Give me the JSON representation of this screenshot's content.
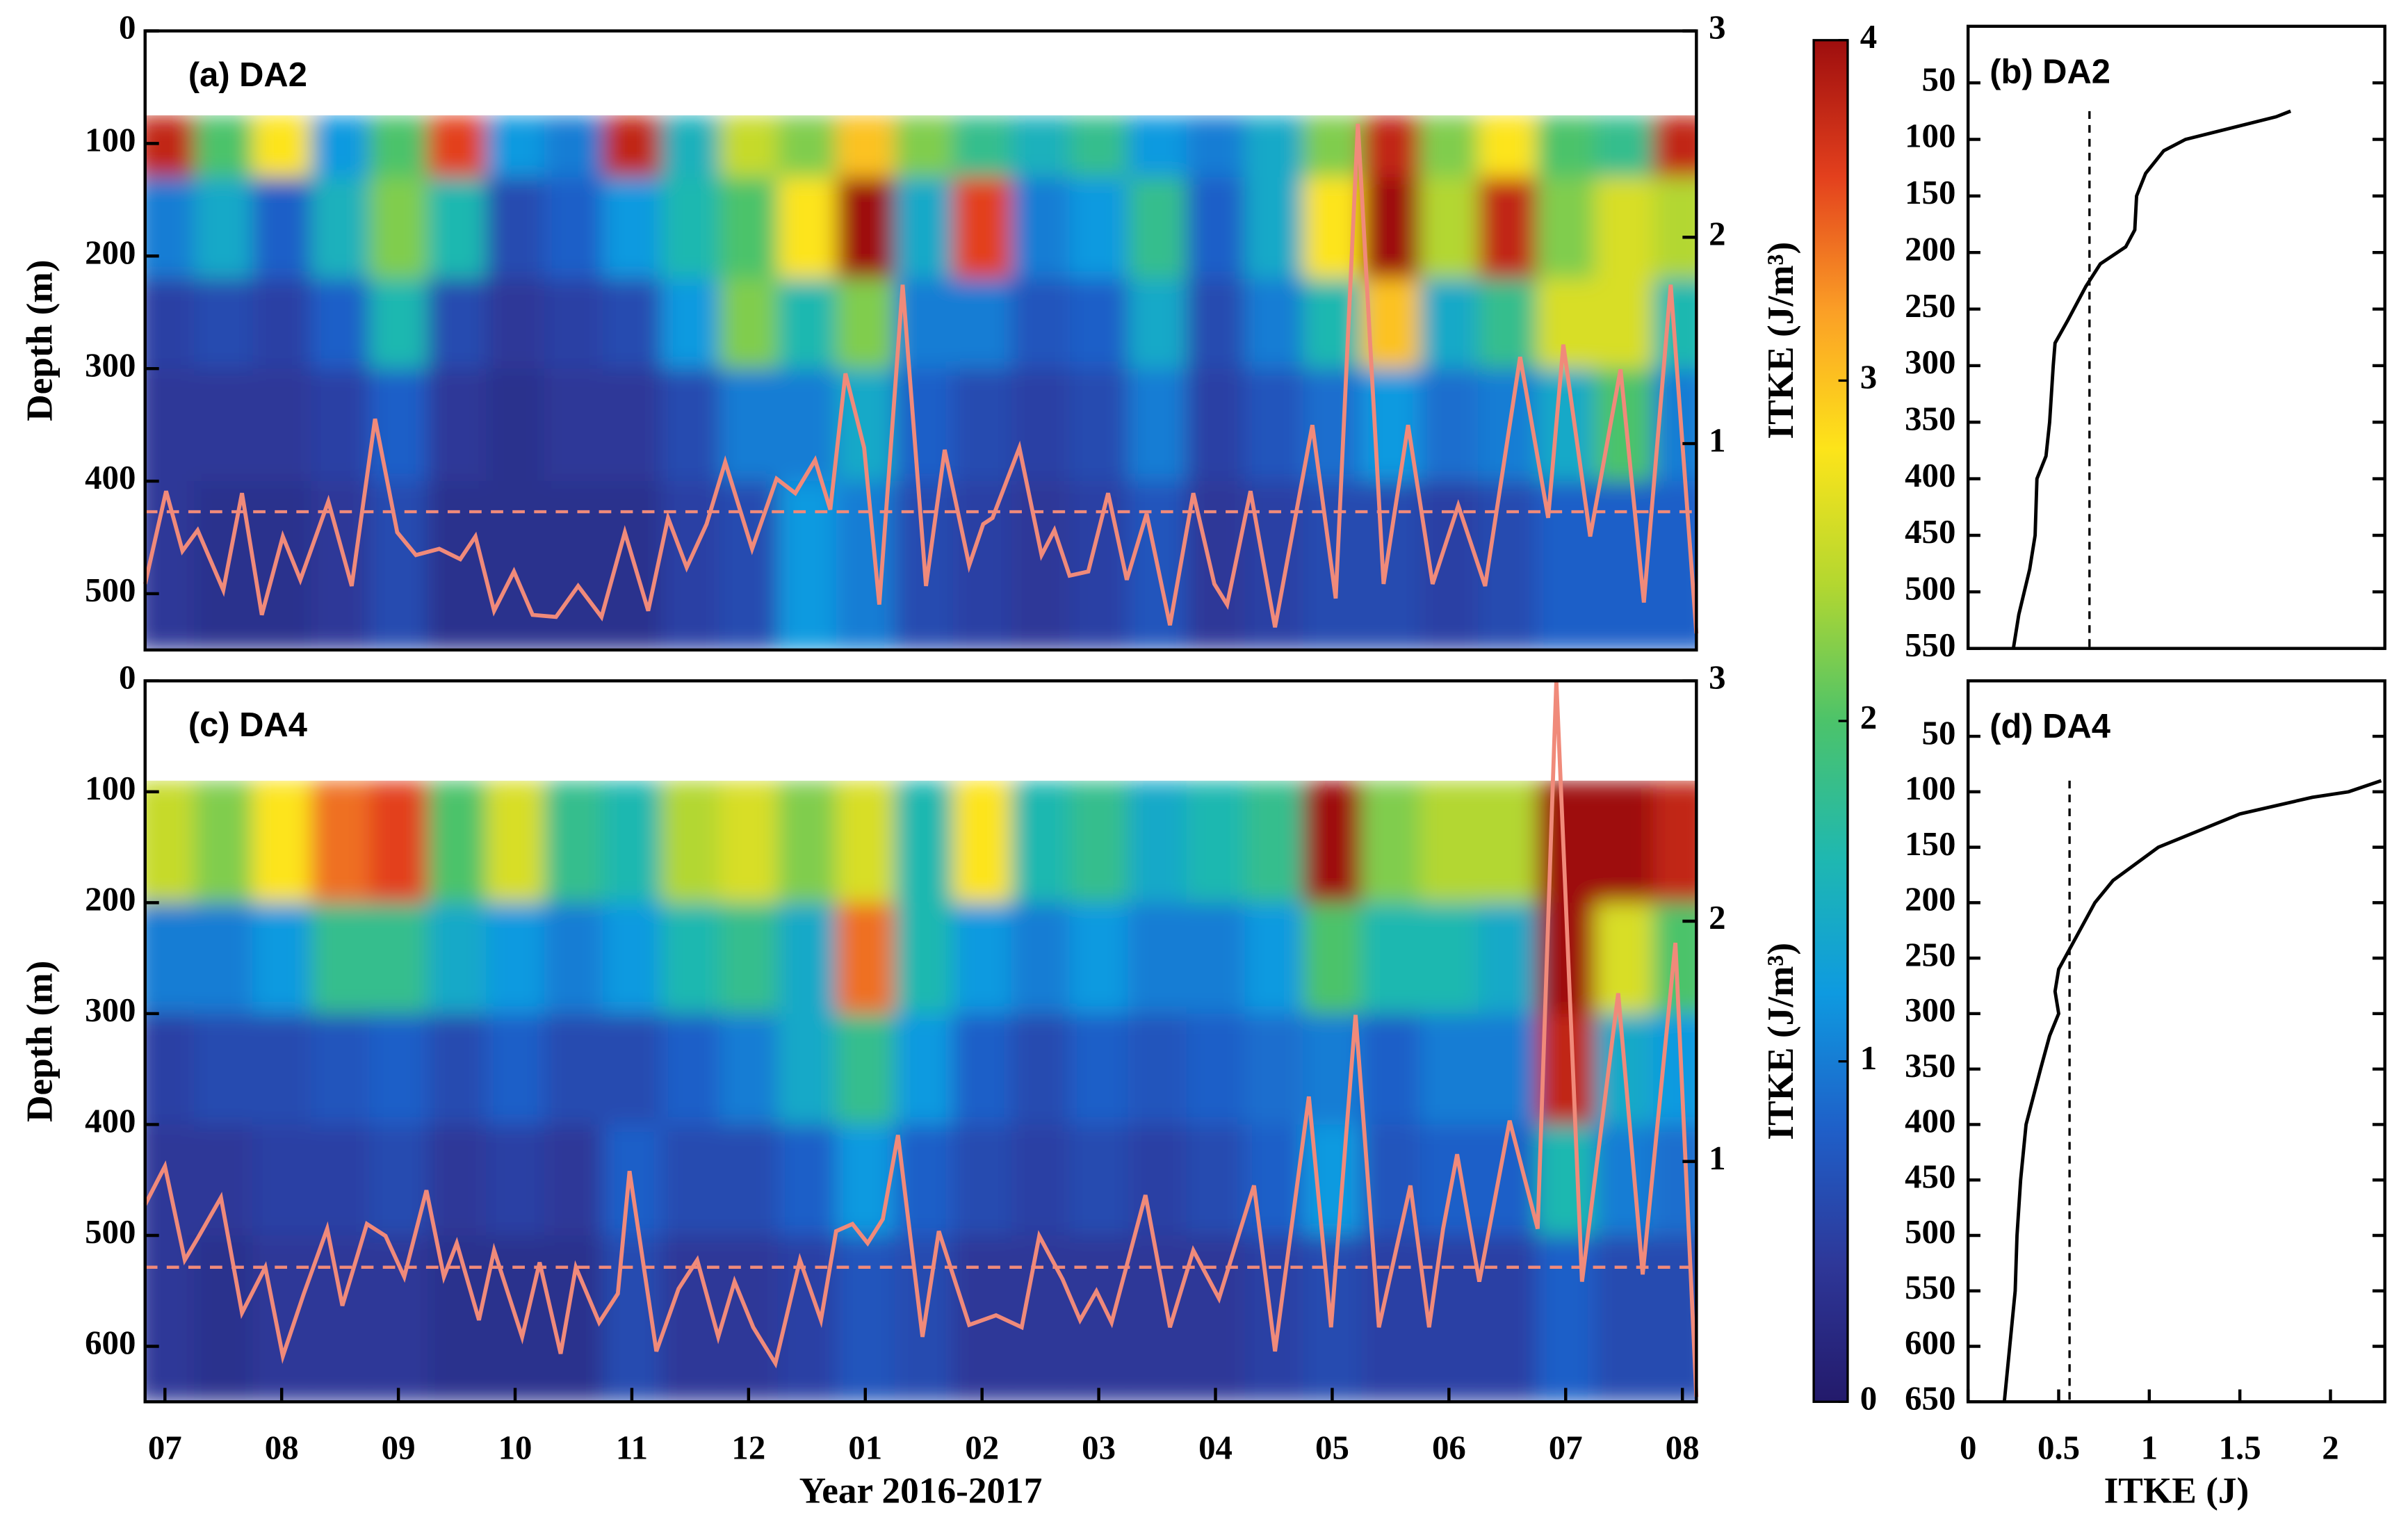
{
  "chart_data": [
    {
      "type": "heatmap",
      "title": "(a) DA2",
      "ylabel": "Depth (m)",
      "y2label": "ITKE (J/m³)",
      "xlim": [
        -0.17,
        13.12
      ],
      "ylim": [
        0,
        550
      ],
      "yticks": [
        0,
        100,
        200,
        300,
        400,
        500
      ],
      "y2lim": [
        0,
        3
      ],
      "y2ticks": [
        1,
        2,
        3
      ],
      "x_edges": [
        -0.25,
        0.25,
        0.75,
        1.25,
        1.75,
        2.25,
        2.75,
        3.25,
        3.75,
        4.25,
        4.75,
        5.25,
        5.75,
        6.25,
        6.75,
        7.25,
        7.75,
        8.25,
        8.75,
        9.25,
        9.75,
        10.25,
        10.75,
        11.25,
        11.75,
        12.25,
        12.75,
        13.25
      ],
      "depth_edges": [
        75,
        130,
        220,
        300,
        400,
        550
      ],
      "values": [
        [
          3.8,
          2.0,
          2.8,
          1.2,
          2.0,
          3.6,
          1.2,
          1.0,
          3.8,
          1.5,
          2.5,
          2.2,
          3.0,
          2.2,
          1.8,
          1.5,
          1.8,
          1.2,
          1.0,
          1.4,
          2.2,
          3.8,
          2.2,
          2.8,
          2.0,
          1.8,
          3.8
        ],
        [
          1.0,
          1.4,
          0.8,
          1.5,
          2.2,
          1.6,
          0.6,
          0.8,
          1.2,
          1.6,
          2.0,
          2.8,
          4.0,
          1.4,
          3.6,
          1.0,
          1.2,
          1.8,
          0.8,
          1.4,
          2.8,
          4.0,
          2.4,
          3.8,
          2.2,
          2.6,
          2.4
        ],
        [
          0.5,
          0.6,
          0.5,
          0.8,
          1.6,
          0.6,
          0.4,
          0.5,
          0.6,
          1.2,
          2.2,
          1.6,
          2.2,
          1.0,
          1.0,
          0.7,
          0.8,
          1.4,
          0.6,
          1.0,
          1.6,
          3.0,
          1.4,
          1.8,
          2.6,
          2.6,
          1.6
        ],
        [
          0.4,
          0.4,
          0.4,
          0.5,
          0.8,
          0.4,
          0.3,
          0.4,
          0.4,
          0.6,
          1.0,
          1.0,
          1.4,
          0.8,
          0.6,
          0.5,
          0.6,
          1.0,
          0.5,
          0.7,
          0.9,
          1.2,
          0.9,
          1.0,
          1.4,
          2.0,
          1.0
        ],
        [
          0.4,
          0.3,
          0.3,
          0.4,
          0.6,
          0.3,
          0.3,
          0.3,
          0.3,
          0.5,
          0.6,
          1.2,
          1.0,
          0.6,
          0.5,
          0.4,
          0.5,
          0.7,
          0.4,
          0.5,
          0.6,
          0.6,
          0.5,
          0.6,
          0.8,
          0.8,
          0.8
        ]
      ],
      "series": [
        {
          "color": "#f08a7a",
          "axis": "y2",
          "x": [
            -0.17,
            0.01,
            0.15,
            0.28,
            0.5,
            0.66,
            0.83,
            1.01,
            1.16,
            1.4,
            1.6,
            1.8,
            1.99,
            2.15,
            2.35,
            2.53,
            2.66,
            2.82,
            2.99,
            3.15,
            3.35,
            3.54,
            3.74,
            3.94,
            4.14,
            4.31,
            4.47,
            4.64,
            4.8,
            5.03,
            5.24,
            5.4,
            5.57,
            5.7,
            5.83,
            5.99,
            6.12,
            6.32,
            6.52,
            6.68,
            6.89,
            7.01,
            7.09,
            7.32,
            7.51,
            7.62,
            7.75,
            7.91,
            8.08,
            8.24,
            8.41,
            8.61,
            8.81,
            8.99,
            9.1,
            9.3,
            9.51,
            9.83,
            10.03,
            10.22,
            10.44,
            10.65,
            10.86,
            11.08,
            11.31,
            11.61,
            11.85,
            11.98,
            12.21,
            12.47,
            12.67,
            12.9,
            13.12
          ],
          "values": [
            0.32,
            0.77,
            0.48,
            0.58,
            0.29,
            0.76,
            0.17,
            0.55,
            0.34,
            0.72,
            0.31,
            1.12,
            0.57,
            0.46,
            0.49,
            0.44,
            0.55,
            0.19,
            0.38,
            0.17,
            0.16,
            0.31,
            0.16,
            0.57,
            0.19,
            0.64,
            0.4,
            0.61,
            0.91,
            0.49,
            0.83,
            0.76,
            0.92,
            0.68,
            1.34,
            0.98,
            0.22,
            1.77,
            0.31,
            0.97,
            0.41,
            0.61,
            0.64,
            0.98,
            0.46,
            0.58,
            0.36,
            0.38,
            0.76,
            0.34,
            0.66,
            0.12,
            0.76,
            0.32,
            0.22,
            0.77,
            0.11,
            1.09,
            0.25,
            2.55,
            0.32,
            1.09,
            0.32,
            0.7,
            0.31,
            1.42,
            0.64,
            1.48,
            0.55,
            1.36,
            0.23,
            1.77,
            0.08
          ]
        }
      ],
      "mean_line": 0.67,
      "colorbar": {
        "lim": [
          0,
          4
        ],
        "ticks": [
          0,
          1,
          2,
          3,
          4
        ],
        "colormap": [
          "#231a6b",
          "#2e3798",
          "#1f5fc8",
          "#0e9ae0",
          "#1fb8b0",
          "#4cc36a",
          "#b3d730",
          "#fde41a",
          "#fba026",
          "#e3401d",
          "#9e0e0e"
        ]
      }
    },
    {
      "type": "profile",
      "title": "(b) DA2",
      "xlim": [
        0,
        2.3
      ],
      "ylim": [
        0,
        550
      ],
      "yticks": [
        50,
        100,
        150,
        200,
        250,
        300,
        350,
        400,
        450,
        500,
        550
      ],
      "depth": [
        75,
        80,
        90,
        100,
        110,
        130,
        150,
        180,
        195,
        210,
        230,
        260,
        280,
        300,
        350,
        380,
        400,
        450,
        480,
        520,
        550
      ],
      "values": [
        1.78,
        1.7,
        1.45,
        1.2,
        1.08,
        0.98,
        0.93,
        0.92,
        0.87,
        0.73,
        0.65,
        0.55,
        0.48,
        0.47,
        0.45,
        0.43,
        0.38,
        0.37,
        0.34,
        0.28,
        0.25
      ],
      "color": "#000000",
      "mean_line": 0.67
    },
    {
      "type": "heatmap",
      "title": "(c) DA4",
      "ylabel": "Depth (m)",
      "y2label": "ITKE (J/m³)",
      "xlabel": "Year 2016-2017",
      "xlim": [
        -0.17,
        13.12
      ],
      "xticks": [
        {
          "value": 0,
          "label": "07"
        },
        {
          "value": 1,
          "label": "08"
        },
        {
          "value": 2,
          "label": "09"
        },
        {
          "value": 3,
          "label": "10"
        },
        {
          "value": 4,
          "label": "11"
        },
        {
          "value": 5,
          "label": "12"
        },
        {
          "value": 6,
          "label": "01"
        },
        {
          "value": 7,
          "label": "02"
        },
        {
          "value": 8,
          "label": "03"
        },
        {
          "value": 9,
          "label": "04"
        },
        {
          "value": 10,
          "label": "05"
        },
        {
          "value": 11,
          "label": "06"
        },
        {
          "value": 12,
          "label": "07"
        },
        {
          "value": 13,
          "label": "08"
        }
      ],
      "ylim": [
        0,
        650
      ],
      "yticks": [
        0,
        100,
        200,
        300,
        400,
        500,
        600
      ],
      "y2lim": [
        0,
        3
      ],
      "y2ticks": [
        1,
        2,
        3
      ],
      "x_edges": [
        -0.25,
        0.25,
        0.75,
        1.25,
        1.75,
        2.25,
        2.75,
        3.25,
        3.75,
        4.25,
        4.75,
        5.25,
        5.75,
        6.25,
        6.75,
        7.25,
        7.75,
        8.25,
        8.75,
        9.25,
        9.75,
        10.25,
        10.75,
        11.25,
        11.75,
        12.25,
        12.75,
        13.25
      ],
      "depth_edges": [
        90,
        200,
        300,
        400,
        500,
        650
      ],
      "values": [
        [
          2.5,
          2.2,
          2.8,
          3.4,
          3.6,
          2.0,
          2.6,
          1.8,
          1.6,
          2.4,
          2.6,
          2.2,
          2.6,
          1.6,
          2.8,
          1.6,
          1.8,
          1.4,
          1.6,
          1.8,
          4.0,
          2.2,
          2.4,
          2.4,
          4.0,
          4.0,
          3.8
        ],
        [
          1.0,
          1.0,
          1.2,
          1.8,
          1.8,
          1.4,
          1.2,
          1.0,
          1.2,
          1.6,
          1.8,
          1.4,
          3.4,
          1.6,
          1.2,
          1.0,
          1.2,
          1.0,
          1.0,
          1.2,
          2.0,
          1.6,
          1.6,
          1.4,
          4.0,
          2.6,
          2.0
        ],
        [
          0.5,
          0.6,
          0.6,
          0.7,
          0.8,
          0.6,
          0.8,
          0.6,
          0.6,
          0.8,
          1.0,
          1.4,
          1.8,
          1.2,
          0.8,
          0.6,
          0.8,
          0.7,
          0.8,
          0.9,
          1.0,
          0.8,
          1.0,
          1.0,
          3.8,
          1.4,
          1.2
        ],
        [
          0.4,
          0.4,
          0.5,
          0.5,
          0.6,
          0.4,
          0.5,
          0.4,
          0.8,
          0.6,
          0.6,
          0.8,
          1.2,
          0.8,
          0.6,
          0.5,
          0.6,
          0.5,
          0.6,
          0.8,
          1.2,
          0.7,
          0.8,
          0.8,
          1.6,
          1.0,
          0.9
        ],
        [
          0.4,
          0.3,
          0.4,
          0.4,
          0.4,
          0.3,
          0.3,
          0.3,
          0.6,
          0.4,
          0.4,
          0.5,
          0.7,
          0.6,
          0.4,
          0.4,
          0.4,
          0.4,
          0.4,
          0.5,
          0.6,
          0.5,
          0.5,
          0.5,
          0.8,
          0.6,
          0.6
        ]
      ],
      "series": [
        {
          "color": "#f08a7a",
          "axis": "y2",
          "x": [
            -0.17,
            0.0,
            0.17,
            0.28,
            0.48,
            0.66,
            0.86,
            1.01,
            1.19,
            1.39,
            1.52,
            1.73,
            1.89,
            2.05,
            2.24,
            2.39,
            2.5,
            2.69,
            2.82,
            3.06,
            3.21,
            3.39,
            3.52,
            3.72,
            3.88,
            3.98,
            4.21,
            4.4,
            4.56,
            4.74,
            4.88,
            5.04,
            5.23,
            5.44,
            5.62,
            5.75,
            5.89,
            6.02,
            6.15,
            6.28,
            6.49,
            6.63,
            6.89,
            7.12,
            7.34,
            7.49,
            7.69,
            7.84,
            7.98,
            8.11,
            8.4,
            8.61,
            8.81,
            9.03,
            9.33,
            9.51,
            9.8,
            9.99,
            10.2,
            10.4,
            10.67,
            10.83,
            10.95,
            11.07,
            11.26,
            11.52,
            11.76,
            11.92,
            12.14,
            12.45,
            12.66,
            12.94,
            13.12
          ],
          "values": [
            0.82,
            0.98,
            0.59,
            0.68,
            0.85,
            0.37,
            0.56,
            0.19,
            0.45,
            0.72,
            0.4,
            0.74,
            0.69,
            0.52,
            0.88,
            0.52,
            0.66,
            0.34,
            0.63,
            0.27,
            0.58,
            0.2,
            0.56,
            0.33,
            0.45,
            0.96,
            0.21,
            0.47,
            0.59,
            0.27,
            0.5,
            0.31,
            0.16,
            0.59,
            0.34,
            0.71,
            0.74,
            0.66,
            0.76,
            1.11,
            0.27,
            0.71,
            0.32,
            0.36,
            0.31,
            0.69,
            0.51,
            0.34,
            0.46,
            0.33,
            0.86,
            0.31,
            0.63,
            0.43,
            0.9,
            0.21,
            1.27,
            0.31,
            1.61,
            0.31,
            0.9,
            0.31,
            0.72,
            1.03,
            0.5,
            1.17,
            0.72,
            3.0,
            0.5,
            1.7,
            0.53,
            1.91,
            0.02
          ]
        }
      ],
      "mean_line": 0.56
    },
    {
      "type": "profile",
      "title": "(d) DA4",
      "xlabel": "ITKE (J)",
      "xlim": [
        0,
        2.3
      ],
      "xticks": [
        0,
        0.5,
        1,
        1.5,
        2
      ],
      "ylim": [
        0,
        650
      ],
      "yticks": [
        50,
        100,
        150,
        200,
        250,
        300,
        350,
        400,
        450,
        500,
        550,
        600,
        650
      ],
      "depth": [
        90,
        100,
        105,
        120,
        150,
        180,
        200,
        230,
        260,
        280,
        300,
        320,
        350,
        400,
        450,
        500,
        550,
        600,
        650
      ],
      "values": [
        2.28,
        2.1,
        1.9,
        1.5,
        1.05,
        0.8,
        0.7,
        0.6,
        0.5,
        0.48,
        0.5,
        0.45,
        0.4,
        0.32,
        0.29,
        0.27,
        0.26,
        0.23,
        0.2
      ],
      "color": "#000000",
      "mean_line": 0.56
    }
  ]
}
